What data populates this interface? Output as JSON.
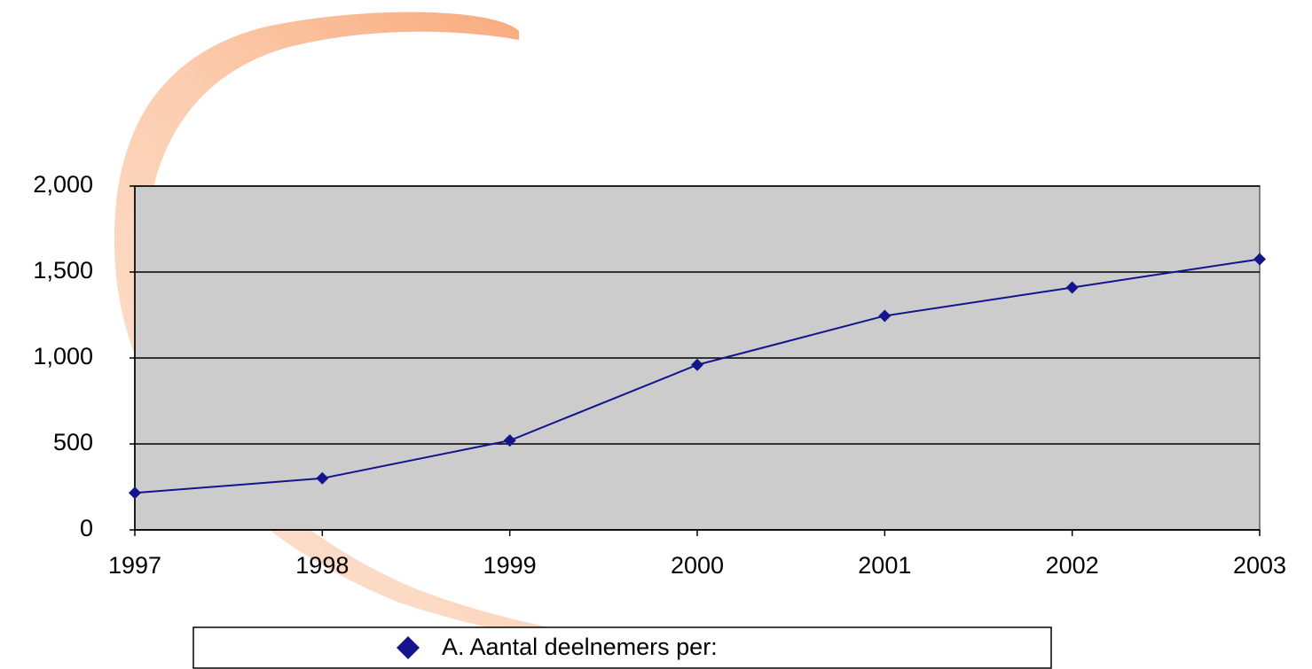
{
  "chart_data": {
    "type": "line",
    "x": [
      1997,
      1998,
      1999,
      2000,
      2001,
      2002,
      2003
    ],
    "xlim": [
      1997,
      2003
    ],
    "xticks": [
      1997,
      1998,
      1999,
      2000,
      2001,
      2002,
      2003
    ],
    "ylim": [
      0,
      2000
    ],
    "yticks": [
      0,
      500,
      {
        "value": 1000,
        "label": "1,000"
      },
      {
        "value": 1500,
        "label": "1,500"
      },
      {
        "value": 2000,
        "label": "2,000"
      }
    ],
    "grid": true,
    "legend": "bottom",
    "series": [
      {
        "name": "A. Aantal deelnemers per:",
        "color": "#14148c",
        "values": [
          215,
          300,
          520,
          960,
          1245,
          1410,
          1575
        ]
      }
    ]
  }
}
